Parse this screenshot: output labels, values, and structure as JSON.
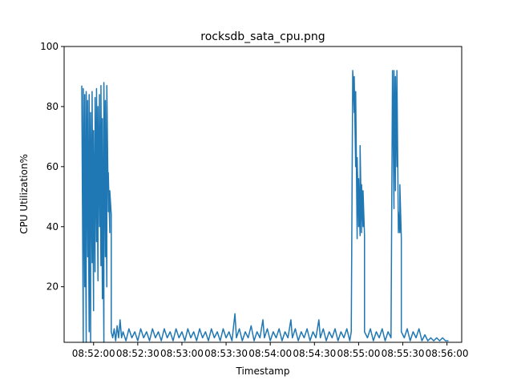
{
  "chart_data": {
    "type": "line",
    "title": "rocksdb_sata_cpu.png",
    "xlabel": "Timestamp",
    "ylabel": "CPU Utilization%",
    "ylim": [
      1.5,
      100
    ],
    "xlim": [
      "08:51:40",
      "08:56:10"
    ],
    "yticks": [
      20,
      40,
      60,
      80,
      100
    ],
    "xticks": [
      "08:52:00",
      "08:52:30",
      "08:53:00",
      "08:53:30",
      "08:54:00",
      "08:54:30",
      "08:55:00",
      "08:55:30",
      "08:56:00"
    ],
    "grid": false,
    "line_color": "#1f77b4",
    "series": [
      {
        "name": "",
        "points": [
          [
            "08:51:52",
            87
          ],
          [
            "08:51:52",
            85
          ],
          [
            "08:51:53",
            1.5
          ],
          [
            "08:51:53",
            86
          ],
          [
            "08:51:54",
            20
          ],
          [
            "08:51:54",
            84
          ],
          [
            "08:51:55",
            1.5
          ],
          [
            "08:51:55",
            85
          ],
          [
            "08:51:56",
            30
          ],
          [
            "08:51:56",
            82
          ],
          [
            "08:51:57",
            5
          ],
          [
            "08:51:57",
            84
          ],
          [
            "08:51:58",
            1.5
          ],
          [
            "08:51:58",
            78
          ],
          [
            "08:51:59",
            28
          ],
          [
            "08:51:59",
            85
          ],
          [
            "08:52:00",
            12
          ],
          [
            "08:52:00",
            72
          ],
          [
            "08:52:01",
            25
          ],
          [
            "08:52:01",
            83
          ],
          [
            "08:52:02",
            35
          ],
          [
            "08:52:02",
            86
          ],
          [
            "08:52:03",
            22
          ],
          [
            "08:52:03",
            80
          ],
          [
            "08:52:04",
            40
          ],
          [
            "08:52:04",
            84
          ],
          [
            "08:52:05",
            27
          ],
          [
            "08:52:05",
            87
          ],
          [
            "08:52:06",
            16
          ],
          [
            "08:52:06",
            76
          ],
          [
            "08:52:07",
            1.5
          ],
          [
            "08:52:07",
            88
          ],
          [
            "08:52:08",
            30
          ],
          [
            "08:52:08",
            82
          ],
          [
            "08:52:09",
            20
          ],
          [
            "08:52:09",
            87
          ],
          [
            "08:52:10",
            45
          ],
          [
            "08:52:10",
            58
          ],
          [
            "08:52:11",
            38
          ],
          [
            "08:52:11",
            52
          ],
          [
            "08:52:12",
            44
          ],
          [
            "08:52:12",
            5
          ],
          [
            "08:52:13",
            3
          ],
          [
            "08:52:14",
            6
          ],
          [
            "08:52:15",
            2
          ],
          [
            "08:52:16",
            7
          ],
          [
            "08:52:17",
            3
          ],
          [
            "08:52:18",
            9
          ],
          [
            "08:52:19",
            3
          ],
          [
            "08:52:20",
            5
          ],
          [
            "08:52:22",
            2
          ],
          [
            "08:52:24",
            6
          ],
          [
            "08:52:26",
            3
          ],
          [
            "08:52:28",
            5
          ],
          [
            "08:52:30",
            2
          ],
          [
            "08:52:32",
            6
          ],
          [
            "08:52:34",
            3
          ],
          [
            "08:52:36",
            5
          ],
          [
            "08:52:38",
            2
          ],
          [
            "08:52:40",
            6
          ],
          [
            "08:52:42",
            3
          ],
          [
            "08:52:44",
            5
          ],
          [
            "08:52:46",
            2
          ],
          [
            "08:52:48",
            6
          ],
          [
            "08:52:50",
            3
          ],
          [
            "08:52:52",
            5
          ],
          [
            "08:52:54",
            2
          ],
          [
            "08:52:56",
            6
          ],
          [
            "08:52:58",
            3
          ],
          [
            "08:53:00",
            5
          ],
          [
            "08:53:02",
            2
          ],
          [
            "08:53:04",
            6
          ],
          [
            "08:53:06",
            3
          ],
          [
            "08:53:08",
            5
          ],
          [
            "08:53:10",
            2
          ],
          [
            "08:53:12",
            6
          ],
          [
            "08:53:14",
            3
          ],
          [
            "08:53:16",
            5
          ],
          [
            "08:53:18",
            2
          ],
          [
            "08:53:20",
            6
          ],
          [
            "08:53:22",
            3
          ],
          [
            "08:53:24",
            5
          ],
          [
            "08:53:26",
            2
          ],
          [
            "08:53:28",
            6
          ],
          [
            "08:53:30",
            3
          ],
          [
            "08:53:32",
            5
          ],
          [
            "08:53:34",
            2
          ],
          [
            "08:53:36",
            11
          ],
          [
            "08:53:37",
            3
          ],
          [
            "08:53:39",
            6
          ],
          [
            "08:53:41",
            2
          ],
          [
            "08:53:43",
            5
          ],
          [
            "08:53:45",
            3
          ],
          [
            "08:53:47",
            7
          ],
          [
            "08:53:49",
            2
          ],
          [
            "08:53:51",
            5
          ],
          [
            "08:53:53",
            3
          ],
          [
            "08:53:55",
            9
          ],
          [
            "08:53:56",
            3
          ],
          [
            "08:53:58",
            6
          ],
          [
            "08:54:00",
            2
          ],
          [
            "08:54:02",
            5
          ],
          [
            "08:54:04",
            3
          ],
          [
            "08:54:06",
            6
          ],
          [
            "08:54:08",
            2
          ],
          [
            "08:54:10",
            5
          ],
          [
            "08:54:12",
            3
          ],
          [
            "08:54:14",
            9
          ],
          [
            "08:54:15",
            3
          ],
          [
            "08:54:17",
            6
          ],
          [
            "08:54:19",
            2
          ],
          [
            "08:54:21",
            5
          ],
          [
            "08:54:23",
            3
          ],
          [
            "08:54:25",
            6
          ],
          [
            "08:54:27",
            2
          ],
          [
            "08:54:29",
            5
          ],
          [
            "08:54:31",
            3
          ],
          [
            "08:54:33",
            9
          ],
          [
            "08:54:34",
            3
          ],
          [
            "08:54:36",
            6
          ],
          [
            "08:54:38",
            2
          ],
          [
            "08:54:40",
            5
          ],
          [
            "08:54:42",
            3
          ],
          [
            "08:54:44",
            6
          ],
          [
            "08:54:46",
            2
          ],
          [
            "08:54:48",
            5
          ],
          [
            "08:54:50",
            3
          ],
          [
            "08:54:52",
            6
          ],
          [
            "08:54:54",
            2
          ],
          [
            "08:54:55",
            5
          ],
          [
            "08:54:56",
            92
          ],
          [
            "08:54:57",
            78
          ],
          [
            "08:54:57",
            90
          ],
          [
            "08:54:58",
            60
          ],
          [
            "08:54:58",
            85
          ],
          [
            "08:54:59",
            36
          ],
          [
            "08:54:59",
            63
          ],
          [
            "08:55:00",
            40
          ],
          [
            "08:55:00",
            56
          ],
          [
            "08:55:01",
            37
          ],
          [
            "08:55:01",
            67
          ],
          [
            "08:55:02",
            38
          ],
          [
            "08:55:02",
            54
          ],
          [
            "08:55:03",
            40
          ],
          [
            "08:55:03",
            52
          ],
          [
            "08:55:04",
            37
          ],
          [
            "08:55:04",
            5
          ],
          [
            "08:55:06",
            3
          ],
          [
            "08:55:08",
            6
          ],
          [
            "08:55:10",
            2
          ],
          [
            "08:55:12",
            5
          ],
          [
            "08:55:14",
            3
          ],
          [
            "08:55:16",
            6
          ],
          [
            "08:55:18",
            2
          ],
          [
            "08:55:20",
            5
          ],
          [
            "08:55:22",
            3
          ],
          [
            "08:55:23",
            92
          ],
          [
            "08:55:24",
            46
          ],
          [
            "08:55:24",
            92
          ],
          [
            "08:55:25",
            52
          ],
          [
            "08:55:25",
            90
          ],
          [
            "08:55:26",
            60
          ],
          [
            "08:55:26",
            92
          ],
          [
            "08:55:27",
            38
          ],
          [
            "08:55:27",
            45
          ],
          [
            "08:55:28",
            38
          ],
          [
            "08:55:28",
            54
          ],
          [
            "08:55:29",
            36
          ],
          [
            "08:55:29",
            5
          ],
          [
            "08:55:31",
            3
          ],
          [
            "08:55:33",
            6
          ],
          [
            "08:55:35",
            2
          ],
          [
            "08:55:37",
            5
          ],
          [
            "08:55:39",
            3
          ],
          [
            "08:55:41",
            6
          ],
          [
            "08:55:43",
            2
          ],
          [
            "08:55:45",
            4
          ],
          [
            "08:55:47",
            2
          ],
          [
            "08:55:49",
            3
          ],
          [
            "08:55:51",
            2
          ],
          [
            "08:55:53",
            3
          ],
          [
            "08:55:55",
            2
          ],
          [
            "08:55:57",
            3
          ],
          [
            "08:55:59",
            2
          ],
          [
            "08:56:01",
            2
          ]
        ]
      }
    ]
  }
}
